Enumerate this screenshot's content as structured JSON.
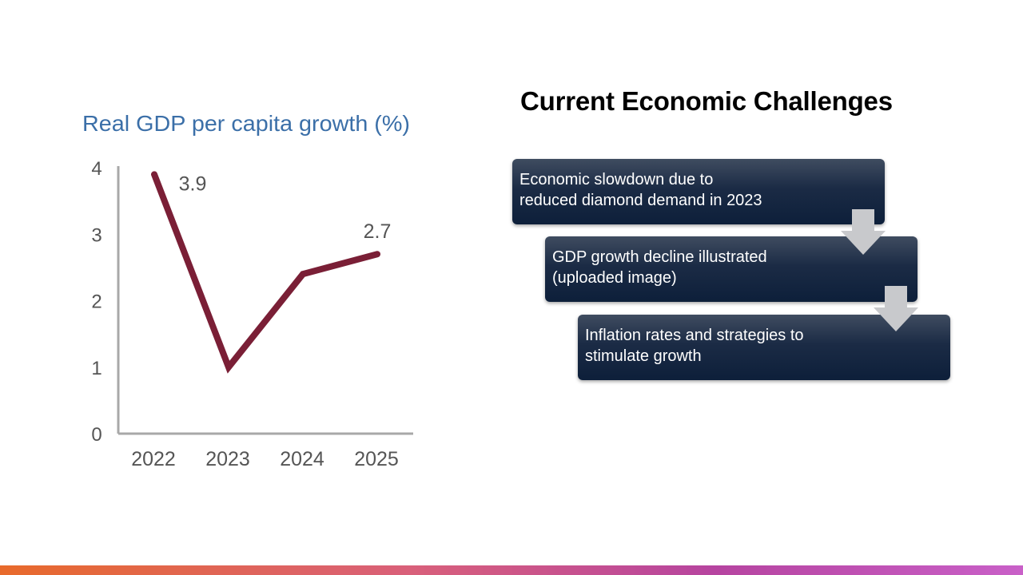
{
  "slide": {
    "title": "Current Economic Challenges",
    "colors": {
      "step_fill": "#1b2b45",
      "arrow_fill": "#c8c9cc",
      "bar_start": "#e86a2b",
      "bar_end": "#c960c8"
    }
  },
  "steps": [
    {
      "text": "Economic slowdown due to\nreduced diamond demand in 2023"
    },
    {
      "text": "GDP growth decline illustrated\n(uploaded image)"
    },
    {
      "text": "Inflation rates and strategies to\nstimulate growth"
    }
  ],
  "chart_data": {
    "type": "line",
    "title": "Real GDP per capita growth (%)",
    "categories": [
      "2022",
      "2023",
      "2024",
      "2025"
    ],
    "series": [
      {
        "values": [
          3.9,
          1.0,
          2.4,
          2.7
        ],
        "color": "#7a1f36"
      }
    ],
    "data_labels": [
      "3.9",
      "",
      "",
      "2.7"
    ],
    "yticks": [
      "0",
      "1",
      "2",
      "3",
      "4"
    ],
    "ylim": [
      0,
      4
    ],
    "grid": false,
    "legend": "none",
    "title_color": "#3b6fa8"
  }
}
